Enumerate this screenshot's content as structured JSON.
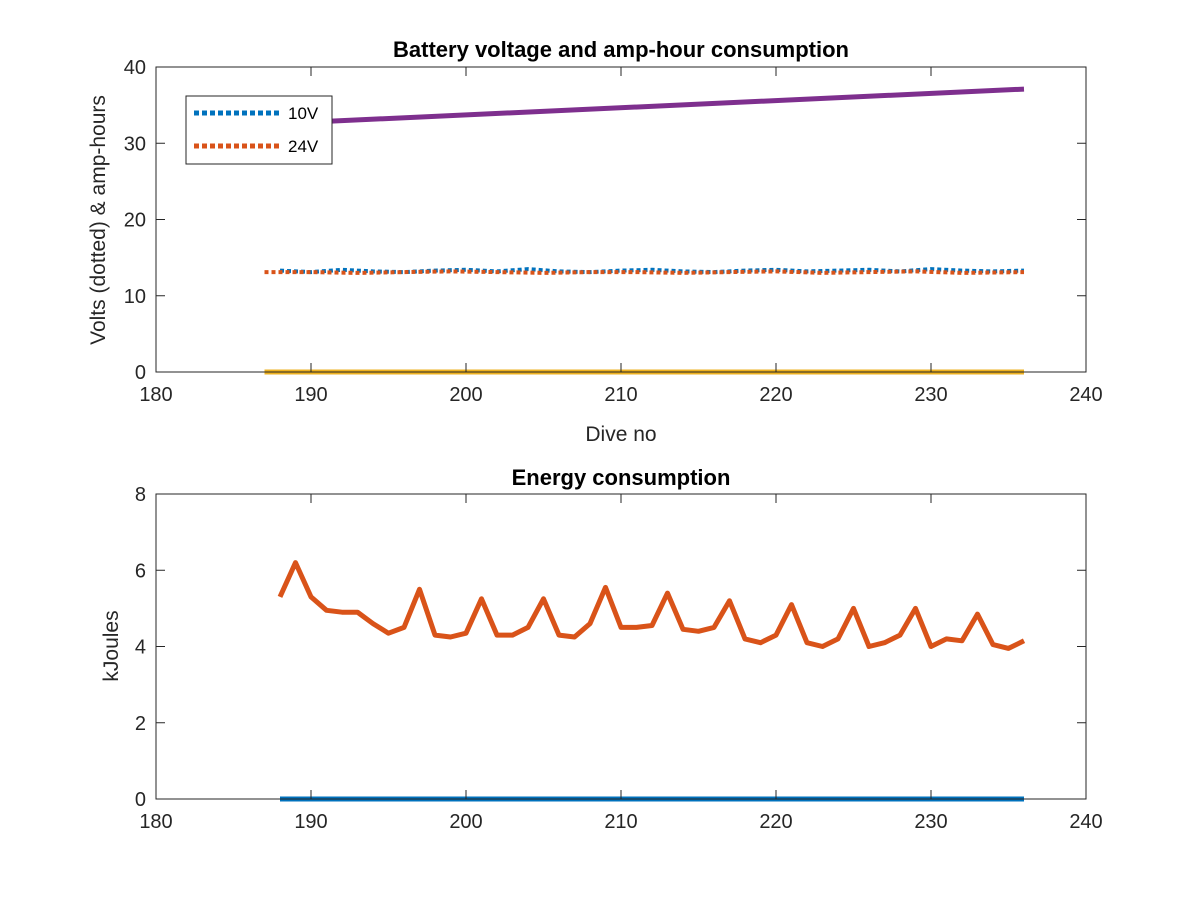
{
  "chart_data": [
    {
      "type": "line",
      "title": "Battery voltage and amp-hour consumption",
      "xlabel": "Dive no",
      "ylabel": "Volts (dotted) & amp-hours",
      "xlim": [
        180,
        240
      ],
      "ylim": [
        0,
        40
      ],
      "xticks": [
        "180",
        "190",
        "200",
        "210",
        "220",
        "230",
        "240"
      ],
      "yticks": [
        "0",
        "10",
        "20",
        "30",
        "40"
      ],
      "legend_position": "top-left",
      "grid": false,
      "series": [
        {
          "name": "10V",
          "style": "dotted",
          "color": "#0072BD",
          "x": [
            188,
            190,
            192,
            194,
            196,
            198,
            200,
            202,
            204,
            206,
            208,
            210,
            212,
            214,
            216,
            218,
            220,
            222,
            224,
            226,
            228,
            230,
            232,
            234,
            236
          ],
          "y": [
            13.3,
            13.1,
            13.4,
            13.2,
            13.1,
            13.3,
            13.4,
            13.2,
            13.5,
            13.2,
            13.1,
            13.3,
            13.4,
            13.2,
            13.1,
            13.3,
            13.4,
            13.2,
            13.3,
            13.4,
            13.2,
            13.5,
            13.3,
            13.2,
            13.3
          ]
        },
        {
          "name": "24V",
          "style": "dotted",
          "color": "#D95319",
          "x": [
            187,
            190,
            193,
            196,
            199,
            202,
            205,
            208,
            211,
            214,
            217,
            220,
            223,
            226,
            229,
            232,
            236
          ],
          "y": [
            13.1,
            13.1,
            13.0,
            13.1,
            13.2,
            13.1,
            13.0,
            13.1,
            13.1,
            13.0,
            13.1,
            13.2,
            13.0,
            13.1,
            13.2,
            13.0,
            13.1
          ]
        },
        {
          "style": "solid",
          "color": "#EDB120",
          "x": [
            187,
            236
          ],
          "y": [
            0,
            0
          ]
        },
        {
          "style": "solid",
          "color": "#7E2F8E",
          "x": [
            187,
            236
          ],
          "y": [
            32.5,
            37.1
          ]
        }
      ]
    },
    {
      "type": "line",
      "title": "Energy consumption",
      "xlabel": "",
      "ylabel": "kJoules",
      "xlim": [
        180,
        240
      ],
      "ylim": [
        0,
        8
      ],
      "xticks": [
        "180",
        "190",
        "200",
        "210",
        "220",
        "230",
        "240"
      ],
      "yticks": [
        "0",
        "2",
        "4",
        "6",
        "8"
      ],
      "grid": false,
      "series": [
        {
          "style": "solid",
          "color": "#D95319",
          "x": [
            188,
            189,
            190,
            191,
            192,
            193,
            194,
            195,
            196,
            197,
            198,
            199,
            200,
            201,
            202,
            203,
            204,
            205,
            206,
            207,
            208,
            209,
            210,
            211,
            212,
            213,
            214,
            215,
            216,
            217,
            218,
            219,
            220,
            221,
            222,
            223,
            224,
            225,
            226,
            227,
            228,
            229,
            230,
            231,
            232,
            233,
            234,
            235,
            236
          ],
          "y": [
            5.3,
            6.2,
            5.3,
            4.95,
            4.9,
            4.9,
            4.6,
            4.35,
            4.5,
            5.5,
            4.3,
            4.25,
            4.35,
            5.25,
            4.3,
            4.3,
            4.5,
            5.25,
            4.3,
            4.25,
            4.6,
            5.55,
            4.5,
            4.5,
            4.55,
            5.4,
            4.45,
            4.4,
            4.5,
            5.2,
            4.2,
            4.1,
            4.3,
            5.1,
            4.1,
            4.0,
            4.2,
            5.0,
            4.0,
            4.1,
            4.3,
            5.0,
            4.0,
            4.2,
            4.15,
            4.85,
            4.05,
            3.95,
            4.15
          ]
        },
        {
          "style": "solid",
          "color": "#0072BD",
          "x": [
            188,
            236
          ],
          "y": [
            0,
            0
          ]
        }
      ]
    }
  ]
}
